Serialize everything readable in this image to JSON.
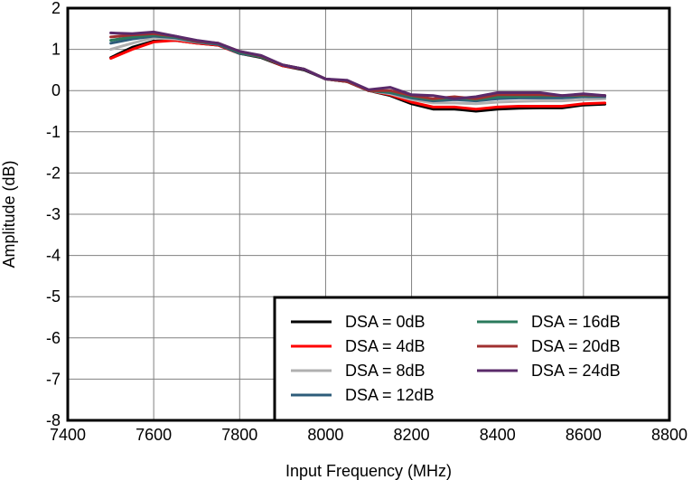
{
  "chart_data": {
    "type": "line",
    "xlabel": "Input Frequency (MHz)",
    "ylabel": "Amplitude (dB)",
    "xlim": [
      7400,
      8800
    ],
    "ylim": [
      -8,
      2
    ],
    "x_ticks": [
      "7400",
      "7600",
      "7800",
      "8000",
      "8200",
      "8400",
      "8600",
      "8800"
    ],
    "y_ticks": [
      "2",
      "1",
      "0",
      "-1",
      "-2",
      "-3",
      "-4",
      "-5",
      "-6",
      "-7",
      "-8"
    ],
    "grid": true,
    "legend_position": "bottom-right",
    "x": [
      7500,
      7550,
      7600,
      7650,
      7700,
      7750,
      7800,
      7850,
      7900,
      7950,
      8000,
      8050,
      8100,
      8150,
      8200,
      8250,
      8300,
      8350,
      8400,
      8450,
      8500,
      8550,
      8600,
      8650
    ],
    "series": [
      {
        "name": "DSA = 0dB",
        "color": "#000000",
        "values": [
          0.8,
          1.05,
          1.2,
          1.22,
          1.15,
          1.1,
          0.9,
          0.8,
          0.6,
          0.5,
          0.28,
          0.22,
          0.0,
          -0.12,
          -0.32,
          -0.45,
          -0.45,
          -0.5,
          -0.45,
          -0.43,
          -0.42,
          -0.42,
          -0.35,
          -0.33
        ]
      },
      {
        "name": "DSA = 4dB",
        "color": "#ff0000",
        "values": [
          0.78,
          1.0,
          1.18,
          1.22,
          1.15,
          1.1,
          0.9,
          0.82,
          0.6,
          0.52,
          0.28,
          0.22,
          0.0,
          -0.1,
          -0.28,
          -0.4,
          -0.4,
          -0.45,
          -0.4,
          -0.38,
          -0.38,
          -0.38,
          -0.32,
          -0.3
        ]
      },
      {
        "name": "DSA = 8dB",
        "color": "#b0b0b0",
        "values": [
          1.0,
          1.15,
          1.28,
          1.25,
          1.17,
          1.12,
          0.92,
          0.82,
          0.62,
          0.52,
          0.28,
          0.22,
          0.0,
          -0.08,
          -0.22,
          -0.3,
          -0.3,
          -0.32,
          -0.28,
          -0.26,
          -0.25,
          -0.25,
          -0.22,
          -0.2
        ]
      },
      {
        "name": "DSA = 12dB",
        "color": "#2e5c7a",
        "values": [
          1.15,
          1.25,
          1.32,
          1.28,
          1.18,
          1.12,
          0.9,
          0.82,
          0.62,
          0.52,
          0.28,
          0.22,
          0.0,
          -0.05,
          -0.18,
          -0.25,
          -0.22,
          -0.25,
          -0.2,
          -0.18,
          -0.18,
          -0.18,
          -0.15,
          -0.15
        ]
      },
      {
        "name": "DSA = 16dB",
        "color": "#2a7a5c",
        "values": [
          1.22,
          1.3,
          1.35,
          1.3,
          1.2,
          1.14,
          0.92,
          0.82,
          0.62,
          0.52,
          0.28,
          0.22,
          0.0,
          -0.03,
          -0.15,
          -0.22,
          -0.18,
          -0.22,
          -0.15,
          -0.14,
          -0.13,
          -0.13,
          -0.12,
          -0.12
        ]
      },
      {
        "name": "DSA = 20dB",
        "color": "#a03030",
        "values": [
          1.3,
          1.35,
          1.38,
          1.32,
          1.2,
          1.15,
          0.95,
          0.84,
          0.62,
          0.52,
          0.28,
          0.22,
          0.0,
          0.0,
          -0.12,
          -0.2,
          -0.15,
          -0.2,
          -0.1,
          -0.1,
          -0.1,
          -0.12,
          -0.1,
          -0.12
        ]
      },
      {
        "name": "DSA = 24dB",
        "color": "#5a2a6a",
        "values": [
          1.4,
          1.38,
          1.42,
          1.32,
          1.22,
          1.15,
          0.95,
          0.85,
          0.62,
          0.52,
          0.28,
          0.25,
          0.02,
          0.08,
          -0.1,
          -0.12,
          -0.2,
          -0.15,
          -0.05,
          -0.05,
          -0.05,
          -0.12,
          -0.08,
          -0.12
        ]
      }
    ]
  }
}
